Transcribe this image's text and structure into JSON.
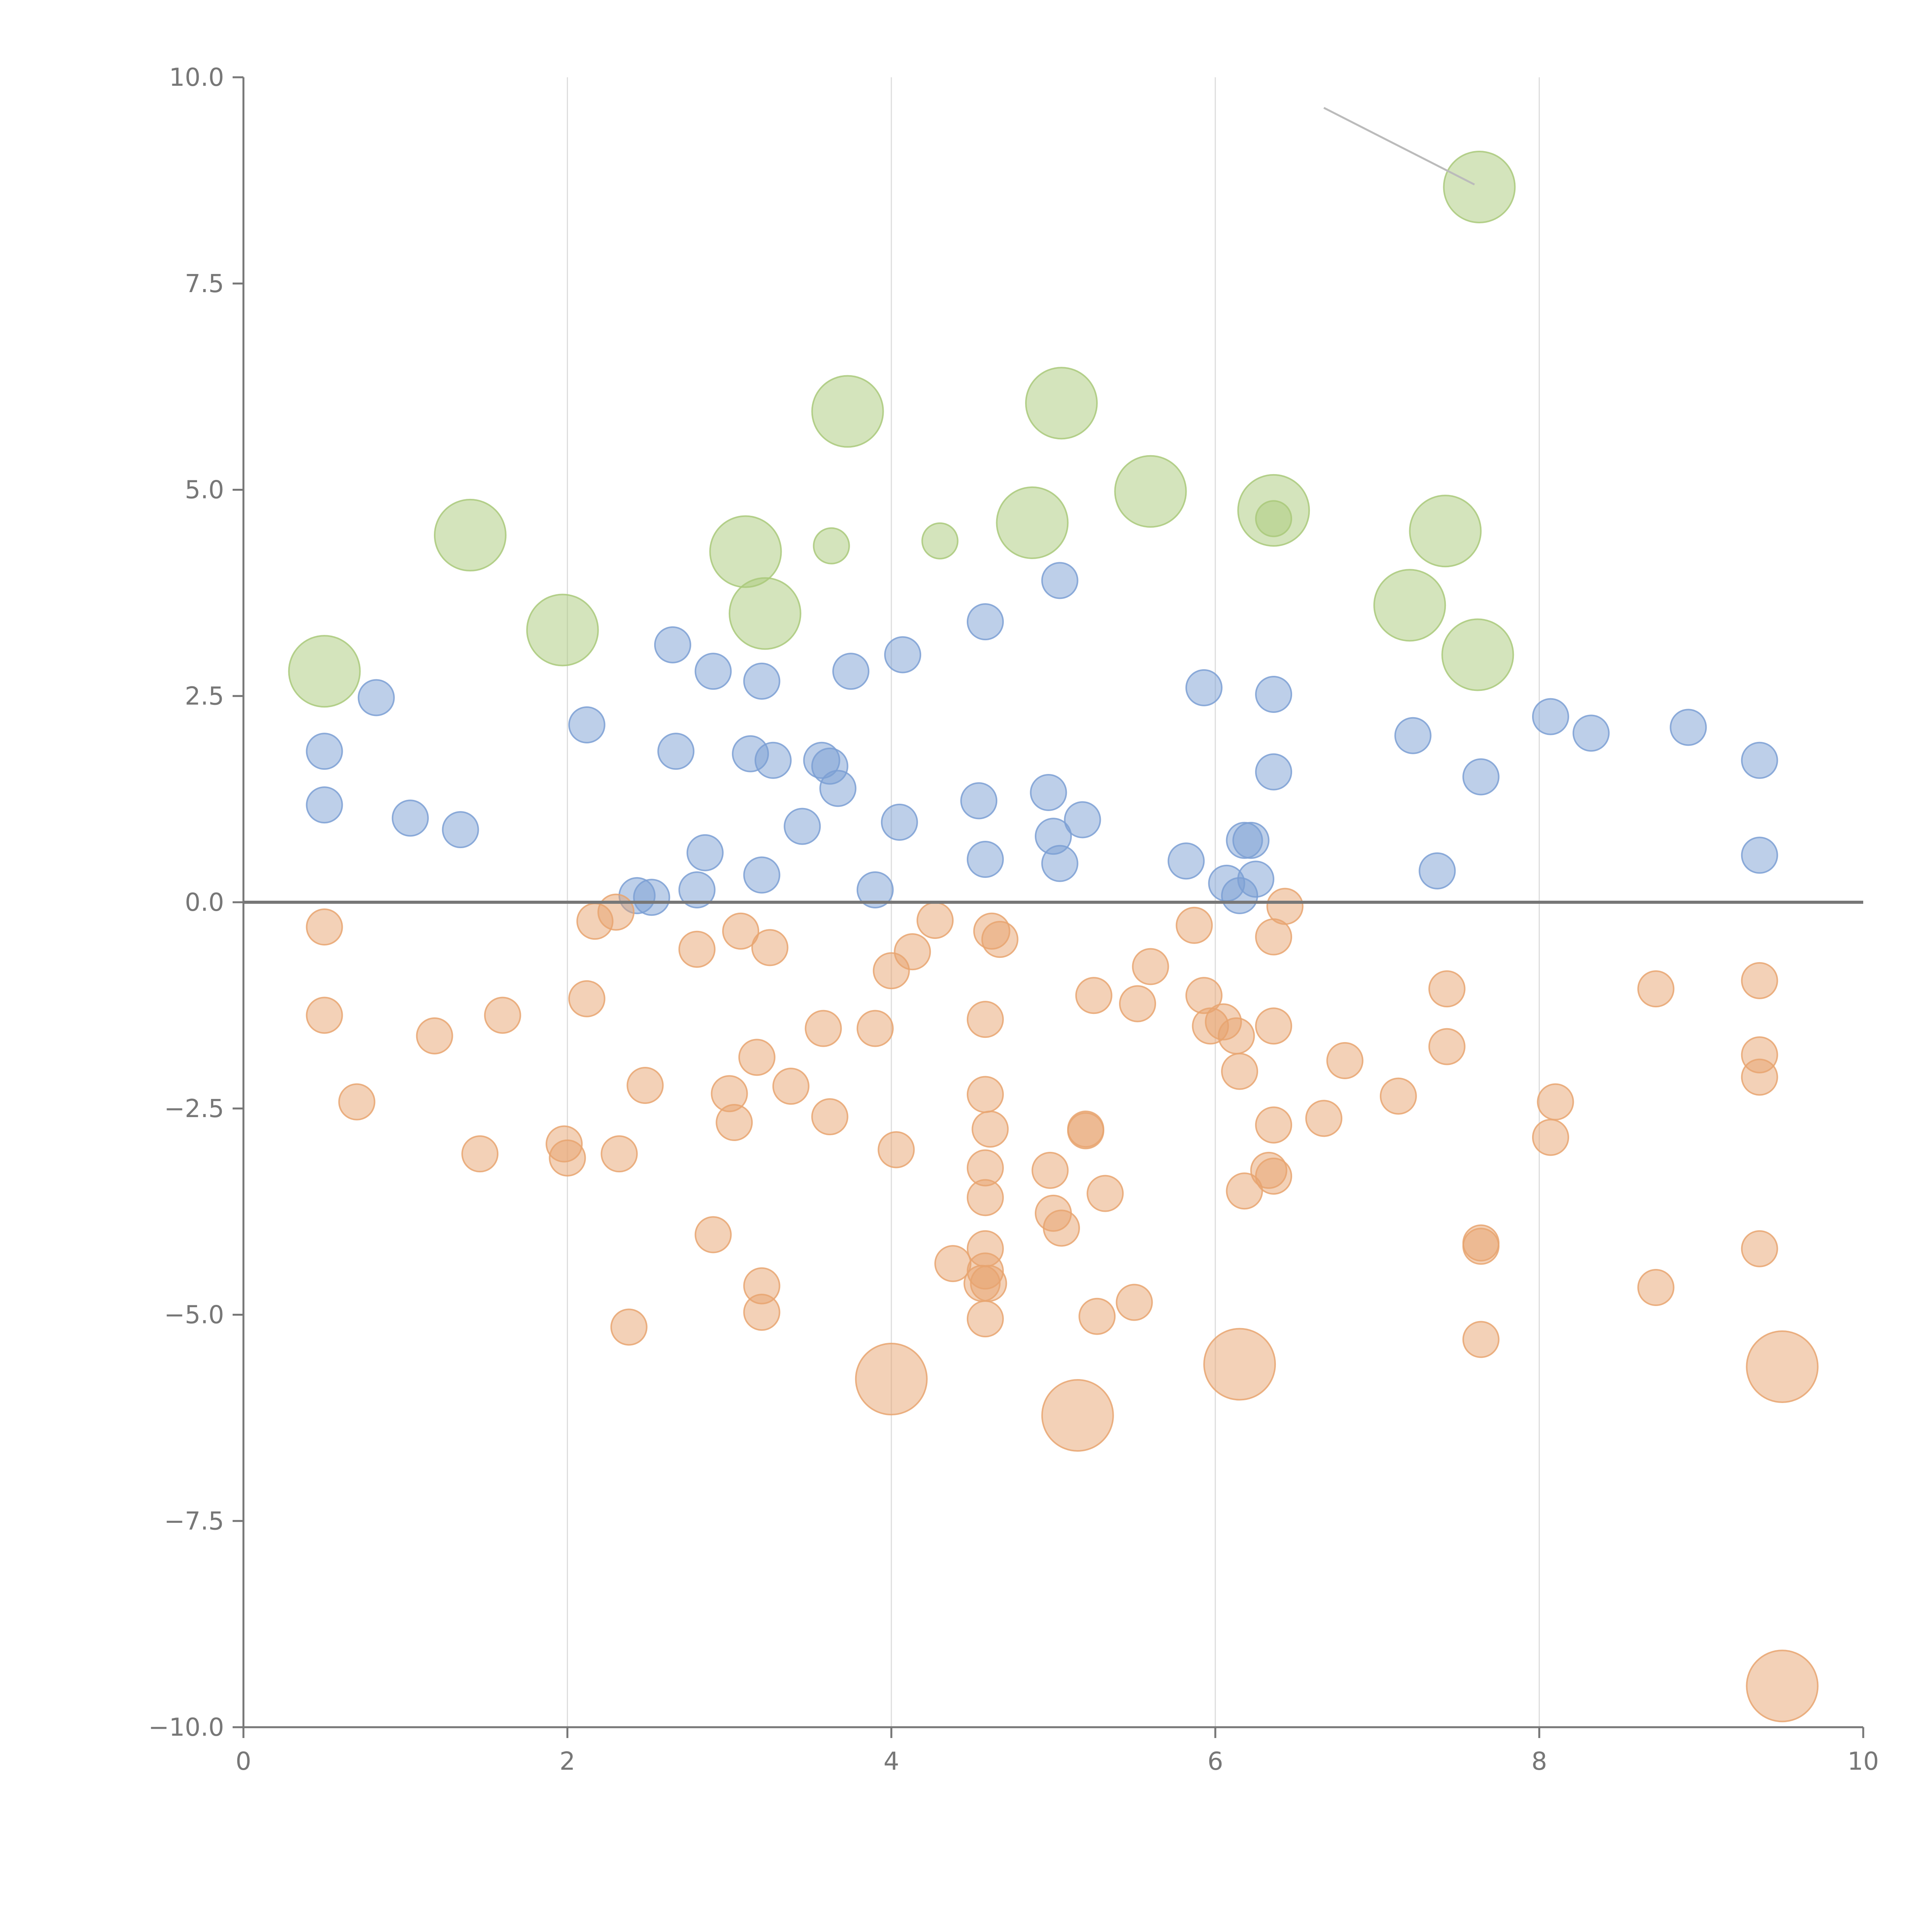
{
  "chart_data": {
    "type": "scatter",
    "title": "",
    "xlabel": "",
    "ylabel": "",
    "xlim": [
      0,
      10
    ],
    "ylim": [
      -10,
      10
    ],
    "xticks": [
      0,
      2,
      4,
      6,
      8,
      10
    ],
    "xtick_labels": [
      "0",
      "2",
      "4",
      "6",
      "8",
      "10"
    ],
    "yticks": [
      -10,
      -7.5,
      -5,
      -2.5,
      0,
      2.5,
      5,
      7.5,
      10
    ],
    "ytick_labels": [
      "−10.0",
      "−7.5",
      "−5.0",
      "−2.5",
      "0.0",
      "2.5",
      "5.0",
      "7.5",
      "10.0"
    ],
    "grid": "x",
    "reference_line_y": 0,
    "annotation_line": {
      "from": [
        6.67,
        9.63
      ],
      "to": [
        7.6,
        8.7
      ]
    },
    "series": [
      {
        "name": "large",
        "color": "#a9c97a",
        "size": "large",
        "points": [
          [
            0.5,
            2.8
          ],
          [
            1.4,
            4.45
          ],
          [
            1.97,
            3.3
          ],
          [
            3.1,
            4.25
          ],
          [
            3.22,
            3.5
          ],
          [
            3.73,
            5.95
          ],
          [
            4.87,
            4.6
          ],
          [
            5.05,
            6.05
          ],
          [
            5.6,
            4.98
          ],
          [
            6.36,
            4.75
          ],
          [
            7.2,
            3.6
          ],
          [
            7.42,
            4.5
          ],
          [
            7.62,
            3.0
          ],
          [
            7.63,
            8.67
          ]
        ]
      },
      {
        "name": "small-green",
        "color": "#a9c97a",
        "size": "small",
        "points": [
          [
            3.63,
            4.32
          ],
          [
            4.3,
            4.38
          ],
          [
            6.36,
            4.65
          ]
        ]
      },
      {
        "name": "blue",
        "color": "#7b9fd4",
        "size": "small",
        "points": [
          [
            0.5,
            1.83
          ],
          [
            0.5,
            1.18
          ],
          [
            0.82,
            2.48
          ],
          [
            1.03,
            1.02
          ],
          [
            1.34,
            0.88
          ],
          [
            2.12,
            2.15
          ],
          [
            2.43,
            0.08
          ],
          [
            2.52,
            0.06
          ],
          [
            2.65,
            3.12
          ],
          [
            2.67,
            1.83
          ],
          [
            2.8,
            0.15
          ],
          [
            2.85,
            0.6
          ],
          [
            2.9,
            2.8
          ],
          [
            3.13,
            1.8
          ],
          [
            3.2,
            2.68
          ],
          [
            3.2,
            0.33
          ],
          [
            3.27,
            1.72
          ],
          [
            3.45,
            0.92
          ],
          [
            3.57,
            1.72
          ],
          [
            3.62,
            1.65
          ],
          [
            3.67,
            1.38
          ],
          [
            3.75,
            2.8
          ],
          [
            3.9,
            0.15
          ],
          [
            4.05,
            0.97
          ],
          [
            4.07,
            3.0
          ],
          [
            4.54,
            1.23
          ],
          [
            4.58,
            3.4
          ],
          [
            4.58,
            0.52
          ],
          [
            4.97,
            1.33
          ],
          [
            5.0,
            0.8
          ],
          [
            5.04,
            3.9
          ],
          [
            5.04,
            0.47
          ],
          [
            5.18,
            1.0
          ],
          [
            5.82,
            0.5
          ],
          [
            5.93,
            2.6
          ],
          [
            6.07,
            0.23
          ],
          [
            6.15,
            0.08
          ],
          [
            6.18,
            0.75
          ],
          [
            6.22,
            0.75
          ],
          [
            6.25,
            0.28
          ],
          [
            6.36,
            2.52
          ],
          [
            6.36,
            1.58
          ],
          [
            7.22,
            2.02
          ],
          [
            7.37,
            0.38
          ],
          [
            7.64,
            1.52
          ],
          [
            8.07,
            2.25
          ],
          [
            8.32,
            2.05
          ],
          [
            8.92,
            2.12
          ],
          [
            9.36,
            1.72
          ],
          [
            9.36,
            0.57
          ]
        ]
      },
      {
        "name": "orange",
        "color": "#e8a470",
        "size": "small",
        "points": [
          [
            0.5,
            -0.3
          ],
          [
            0.5,
            -1.37
          ],
          [
            0.7,
            -2.42
          ],
          [
            1.18,
            -1.62
          ],
          [
            1.46,
            -3.05
          ],
          [
            1.6,
            -1.37
          ],
          [
            1.98,
            -2.93
          ],
          [
            2.0,
            -3.1
          ],
          [
            2.12,
            -1.17
          ],
          [
            2.17,
            -0.23
          ],
          [
            2.3,
            -0.12
          ],
          [
            2.32,
            -3.05
          ],
          [
            2.38,
            -5.15
          ],
          [
            2.48,
            -2.22
          ],
          [
            2.8,
            -0.57
          ],
          [
            2.9,
            -4.03
          ],
          [
            3.0,
            -2.32
          ],
          [
            3.03,
            -2.67
          ],
          [
            3.07,
            -0.35
          ],
          [
            3.17,
            -1.88
          ],
          [
            3.2,
            -4.65
          ],
          [
            3.2,
            -4.97
          ],
          [
            3.25,
            -0.55
          ],
          [
            3.38,
            -2.23
          ],
          [
            3.58,
            -1.53
          ],
          [
            3.62,
            -2.6
          ],
          [
            3.9,
            -1.53
          ],
          [
            4.0,
            -0.83
          ],
          [
            4.03,
            -3.0
          ],
          [
            4.13,
            -0.6
          ],
          [
            4.27,
            -0.22
          ],
          [
            4.38,
            -4.38
          ],
          [
            4.56,
            -4.62
          ],
          [
            4.58,
            -1.42
          ],
          [
            4.58,
            -2.33
          ],
          [
            4.58,
            -3.22
          ],
          [
            4.58,
            -3.58
          ],
          [
            4.58,
            -4.2
          ],
          [
            4.58,
            -4.47
          ],
          [
            4.58,
            -5.05
          ],
          [
            4.6,
            -4.62
          ],
          [
            4.61,
            -2.75
          ],
          [
            4.62,
            -0.35
          ],
          [
            4.67,
            -0.45
          ],
          [
            4.98,
            -3.25
          ],
          [
            5.0,
            -3.77
          ],
          [
            5.05,
            -3.95
          ],
          [
            5.2,
            -2.77
          ],
          [
            5.2,
            -2.75
          ],
          [
            5.25,
            -1.13
          ],
          [
            5.27,
            -5.02
          ],
          [
            5.32,
            -3.53
          ],
          [
            5.5,
            -4.85
          ],
          [
            5.52,
            -1.23
          ],
          [
            5.6,
            -0.78
          ],
          [
            5.87,
            -0.28
          ],
          [
            5.93,
            -1.13
          ],
          [
            5.97,
            -1.5
          ],
          [
            6.05,
            -1.45
          ],
          [
            6.13,
            -1.62
          ],
          [
            6.15,
            -2.05
          ],
          [
            6.18,
            -3.5
          ],
          [
            6.33,
            -3.25
          ],
          [
            6.36,
            -0.42
          ],
          [
            6.36,
            -1.5
          ],
          [
            6.36,
            -2.7
          ],
          [
            6.36,
            -3.32
          ],
          [
            6.43,
            -0.05
          ],
          [
            6.67,
            -2.62
          ],
          [
            6.8,
            -1.92
          ],
          [
            7.13,
            -2.35
          ],
          [
            7.43,
            -1.05
          ],
          [
            7.43,
            -1.75
          ],
          [
            7.64,
            -4.13
          ],
          [
            7.64,
            -4.17
          ],
          [
            7.64,
            -5.3
          ],
          [
            8.07,
            -2.85
          ],
          [
            8.1,
            -2.42
          ],
          [
            8.72,
            -1.05
          ],
          [
            8.72,
            -4.67
          ],
          [
            9.36,
            -0.95
          ],
          [
            9.36,
            -1.85
          ],
          [
            9.36,
            -2.12
          ],
          [
            9.36,
            -4.2
          ]
        ]
      },
      {
        "name": "large-orange",
        "color": "#e8a470",
        "size": "large",
        "points": [
          [
            4.0,
            -5.78
          ],
          [
            5.15,
            -6.22
          ],
          [
            6.15,
            -5.6
          ],
          [
            9.5,
            -5.63
          ],
          [
            9.5,
            -9.5
          ]
        ]
      }
    ]
  }
}
